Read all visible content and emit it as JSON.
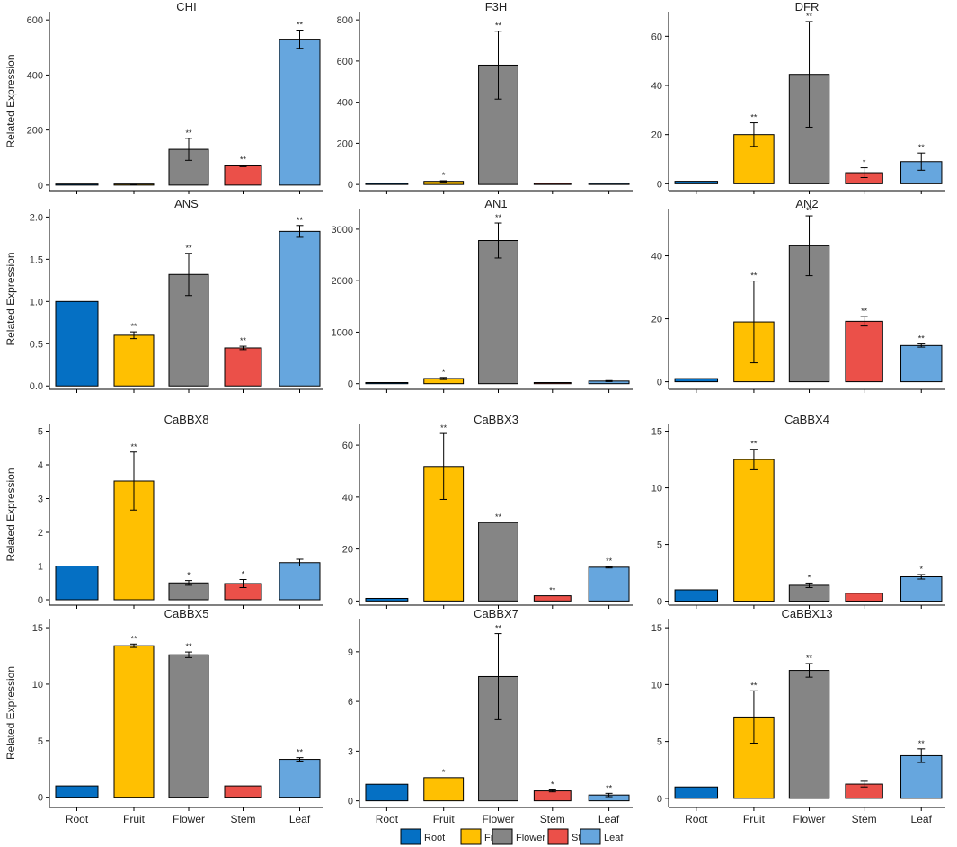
{
  "colors": {
    "Root": "#0570C4",
    "Fruit": "#FFC001",
    "Flower": "#858585",
    "Stem": "#EB5049",
    "Leaf": "#66A6DE"
  },
  "y_axis_label": "Related Expression",
  "x_tick_labels": [
    "Root",
    "Fruit",
    "Flower",
    "Stem",
    "Leaf"
  ],
  "legend": {
    "items": [
      "Root",
      "Fruit",
      "Flower",
      "Stem",
      "Leaf"
    ],
    "position": "bottom"
  },
  "chart_data": [
    {
      "type": "bar",
      "title": "CHI",
      "categories": [
        "Root",
        "Fruit",
        "Flower",
        "Stem",
        "Leaf"
      ],
      "values": [
        1,
        2,
        130,
        70,
        530
      ],
      "errors": [
        0,
        1,
        40,
        3,
        33
      ],
      "significance": [
        "",
        "",
        "**",
        "**",
        "**"
      ],
      "ylim": [
        -20,
        630
      ],
      "ticks": [
        0,
        200,
        400,
        600
      ],
      "ylabel": "Related Expression"
    },
    {
      "type": "bar",
      "title": "F3H",
      "categories": [
        "Root",
        "Fruit",
        "Flower",
        "Stem",
        "Leaf"
      ],
      "values": [
        1,
        15,
        580,
        3,
        1
      ],
      "errors": [
        0,
        3,
        165,
        0,
        0
      ],
      "significance": [
        "",
        "*",
        "**",
        "",
        ""
      ],
      "ylim": [
        -30,
        840
      ],
      "ticks": [
        0,
        200,
        400,
        600,
        800
      ],
      "ylabel": ""
    },
    {
      "type": "bar",
      "title": "DFR",
      "categories": [
        "Root",
        "Fruit",
        "Flower",
        "Stem",
        "Leaf"
      ],
      "values": [
        1,
        20,
        44.5,
        4.5,
        9
      ],
      "errors": [
        0,
        4.8,
        21.5,
        2,
        3.5
      ],
      "significance": [
        "",
        "**",
        "**",
        "*",
        "**"
      ],
      "ylim": [
        -2.8,
        70
      ],
      "ticks": [
        0,
        20,
        40,
        60
      ],
      "ylabel": ""
    },
    {
      "type": "bar",
      "title": "ANS",
      "categories": [
        "Root",
        "Fruit",
        "Flower",
        "Stem",
        "Leaf"
      ],
      "values": [
        1,
        0.6,
        1.32,
        0.45,
        1.83
      ],
      "errors": [
        0,
        0.04,
        0.25,
        0.02,
        0.07
      ],
      "significance": [
        "",
        "**",
        "**",
        "**",
        "**"
      ],
      "ylim": [
        -0.04,
        2.1
      ],
      "ticks": [
        0.0,
        0.5,
        1.0,
        1.5,
        2.0
      ],
      "ylabel": "Related Expression"
    },
    {
      "type": "bar",
      "title": "AN1",
      "categories": [
        "Root",
        "Fruit",
        "Flower",
        "Stem",
        "Leaf"
      ],
      "values": [
        1,
        100,
        2780,
        10,
        50
      ],
      "errors": [
        0,
        20,
        340,
        0,
        10
      ],
      "significance": [
        "",
        "*",
        "**",
        "",
        ""
      ],
      "ylim": [
        -110,
        3400
      ],
      "ticks": [
        0,
        1000,
        2000,
        3000
      ],
      "ylabel": ""
    },
    {
      "type": "bar",
      "title": "AN2",
      "categories": [
        "Root",
        "Fruit",
        "Flower",
        "Stem",
        "Leaf"
      ],
      "values": [
        1,
        19,
        43.2,
        19.2,
        11.5
      ],
      "errors": [
        0,
        13,
        9.5,
        1.5,
        0.5
      ],
      "significance": [
        "",
        "**",
        "**",
        "**",
        "**"
      ],
      "ylim": [
        -2.4,
        55
      ],
      "ticks": [
        0,
        20,
        40
      ],
      "ylabel": ""
    },
    {
      "type": "bar",
      "title": "CaBBX8",
      "categories": [
        "Root",
        "Fruit",
        "Flower",
        "Stem",
        "Leaf"
      ],
      "values": [
        1,
        3.52,
        0.5,
        0.48,
        1.1
      ],
      "errors": [
        0,
        0.86,
        0.07,
        0.12,
        0.1
      ],
      "significance": [
        "",
        "**",
        "*",
        "*",
        ""
      ],
      "ylim": [
        -0.16,
        5.2
      ],
      "ticks": [
        0,
        1,
        2,
        3,
        4,
        5
      ],
      "ylabel": "Related Expression"
    },
    {
      "type": "bar",
      "title": "CaBBX3",
      "categories": [
        "Root",
        "Fruit",
        "Flower",
        "Stem",
        "Leaf"
      ],
      "values": [
        1,
        51.8,
        30.2,
        2,
        13
      ],
      "errors": [
        0,
        12.7,
        0,
        0,
        0.3
      ],
      "significance": [
        "",
        "**",
        "**",
        "**",
        "**"
      ],
      "ylim": [
        -1.6,
        68
      ],
      "ticks": [
        0,
        20,
        40,
        60
      ],
      "ylabel": ""
    },
    {
      "type": "bar",
      "title": "CaBBX4",
      "categories": [
        "Root",
        "Fruit",
        "Flower",
        "Stem",
        "Leaf"
      ],
      "values": [
        1,
        12.5,
        1.4,
        0.7,
        2.15
      ],
      "errors": [
        0,
        0.9,
        0.2,
        0,
        0.2
      ],
      "significance": [
        "",
        "**",
        "*",
        "",
        "*"
      ],
      "ylim": [
        -0.35,
        15.6
      ],
      "ticks": [
        0,
        5,
        10,
        15
      ],
      "ylabel": ""
    },
    {
      "type": "bar",
      "title": "CaBBX5",
      "categories": [
        "Root",
        "Fruit",
        "Flower",
        "Stem",
        "Leaf"
      ],
      "values": [
        1,
        13.4,
        12.6,
        1,
        3.35
      ],
      "errors": [
        0,
        0.15,
        0.25,
        0,
        0.15
      ],
      "significance": [
        "",
        "**",
        "**",
        "",
        "**"
      ],
      "ylim": [
        -0.9,
        15.8
      ],
      "ticks": [
        0,
        5,
        10,
        15
      ],
      "ylabel": "Related Expression"
    },
    {
      "type": "bar",
      "title": "CaBBX7",
      "categories": [
        "Root",
        "Fruit",
        "Flower",
        "Stem",
        "Leaf"
      ],
      "values": [
        1,
        1.4,
        7.5,
        0.6,
        0.35
      ],
      "errors": [
        0,
        0,
        2.6,
        0.06,
        0.1
      ],
      "significance": [
        "",
        "*",
        "**",
        "*",
        "**"
      ],
      "ylim": [
        -0.4,
        11.0
      ],
      "ticks": [
        0,
        3,
        6,
        9
      ],
      "ylabel": ""
    },
    {
      "type": "bar",
      "title": "CaBBX13",
      "categories": [
        "Root",
        "Fruit",
        "Flower",
        "Stem",
        "Leaf"
      ],
      "values": [
        1,
        7.15,
        11.25,
        1.25,
        3.75
      ],
      "errors": [
        0,
        2.3,
        0.6,
        0.25,
        0.6
      ],
      "significance": [
        "",
        "**",
        "**",
        "",
        "**"
      ],
      "ylim": [
        -0.8,
        15.8
      ],
      "ticks": [
        0,
        5,
        10,
        15
      ],
      "ylabel": ""
    }
  ]
}
